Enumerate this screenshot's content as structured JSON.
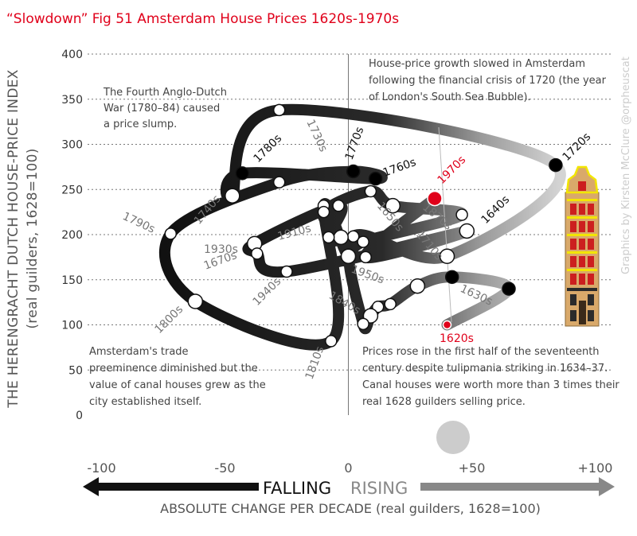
{
  "title": "“Slowdown” Fig 51 Amsterdam House Prices 1620s-1970s",
  "credit": "Graphics by Kirsten McClure @orpheuscat",
  "chart_data": {
    "type": "scatter",
    "subtype": "connected-scatter",
    "xlabel": "ABSOLUTE CHANGE PER DECADE (real guilders, 1628=100)",
    "x_falling_label": "FALLING",
    "x_rising_label": "RISING",
    "ylabel_line1": "THE HERENGRACHT DUTCH HOUSE-PRICE INDEX",
    "ylabel_line2": "(real guilders, 1628=100)",
    "xlim": [
      -100,
      100
    ],
    "ylim": [
      0,
      400
    ],
    "x_ticks": [
      "-100",
      "-50",
      "0",
      "+50",
      "+100"
    ],
    "y_ticks": [
      "0",
      "50",
      "100",
      "150",
      "200",
      "250",
      "300",
      "350",
      "400"
    ],
    "grid": true,
    "points": [
      {
        "x": 40,
        "y": 100,
        "decade": "1620s",
        "label": "1620s",
        "color": "#e0001a"
      },
      {
        "x": 65,
        "y": 140,
        "decade": "1630s",
        "label": "1630s"
      },
      {
        "x": 42,
        "y": 153,
        "decade": "1640s",
        "label": ""
      },
      {
        "x": 28,
        "y": 143,
        "decade": "1650s",
        "label": ""
      },
      {
        "x": 17,
        "y": 123,
        "decade": "1660s",
        "label": ""
      },
      {
        "x": 12,
        "y": 120,
        "decade": "1670s",
        "label": ""
      },
      {
        "x": 9,
        "y": 110,
        "decade": "1680s",
        "label": ""
      },
      {
        "x": 6,
        "y": 101,
        "decade": "1690s",
        "label": ""
      },
      {
        "x": 2,
        "y": 198,
        "decade": "1700s",
        "label": ""
      },
      {
        "x": 40,
        "y": 176,
        "decade": "1710s",
        "label": ""
      },
      {
        "x": 84,
        "y": 277,
        "decade": "1720s",
        "label": "1720s"
      },
      {
        "x": -28,
        "y": 338,
        "decade": "1730s",
        "label": ""
      },
      {
        "x": -47,
        "y": 243,
        "decade": "1740s",
        "label": ""
      },
      {
        "x": -43,
        "y": 268,
        "decade": "1750s",
        "label": ""
      },
      {
        "x": 11,
        "y": 262,
        "decade": "1760s",
        "label": "1760s"
      },
      {
        "x": 2,
        "y": 270,
        "decade": "1770s",
        "label": ""
      },
      {
        "x": -28,
        "y": 258,
        "decade": "1780s",
        "label": ""
      },
      {
        "x": -72,
        "y": 201,
        "decade": "1790s",
        "label": ""
      },
      {
        "x": -62,
        "y": 126,
        "decade": "1800s",
        "label": ""
      },
      {
        "x": -7,
        "y": 82,
        "decade": "1810s",
        "label": ""
      },
      {
        "x": -10,
        "y": 232,
        "decade": "1820s",
        "label": ""
      },
      {
        "x": 0,
        "y": 176,
        "decade": "1830s",
        "label": ""
      },
      {
        "x": 6,
        "y": 192,
        "decade": "1840s",
        "label": ""
      },
      {
        "x": 46,
        "y": 222,
        "decade": "1850s",
        "label": ""
      },
      {
        "x": 18,
        "y": 232,
        "decade": "1860s",
        "label": ""
      },
      {
        "x": 9,
        "y": 248,
        "decade": "1870s",
        "label": ""
      },
      {
        "x": -10,
        "y": 225,
        "decade": "1880s",
        "label": ""
      },
      {
        "x": -3,
        "y": 197,
        "decade": "1890s",
        "label": ""
      },
      {
        "x": -8,
        "y": 197,
        "decade": "1900s",
        "label": ""
      },
      {
        "x": -4,
        "y": 232,
        "decade": "1910s",
        "label": ""
      },
      {
        "x": -38,
        "y": 190,
        "decade": "1920s",
        "label": ""
      },
      {
        "x": -37,
        "y": 179,
        "decade": "1930s",
        "label": ""
      },
      {
        "x": -25,
        "y": 159,
        "decade": "1940s",
        "label": ""
      },
      {
        "x": 48,
        "y": 204,
        "decade": "1950s",
        "label": ""
      },
      {
        "x": 7,
        "y": 175,
        "decade": "1960s",
        "label": ""
      },
      {
        "x": 35,
        "y": 240,
        "decade": "1970s",
        "label": "1970s",
        "color": "#e0001a"
      }
    ],
    "labels": [
      "1620s",
      "1630s",
      "1640s",
      "1650s",
      "1670s",
      "1710s",
      "1720s",
      "1730s",
      "1740s",
      "1760s",
      "1770s",
      "1780s",
      "1790s",
      "1800s",
      "1810s",
      "1840s",
      "1870s",
      "1910s",
      "1930s",
      "1940s",
      "1950s",
      "1970s"
    ],
    "annotations": [
      {
        "lines": [
          "The Fourth Anglo-Dutch",
          "War (1780–84) caused",
          "a price slump."
        ]
      },
      {
        "lines": [
          "House-price growth slowed in Amsterdam",
          "following the financial crisis of 1720 (the year",
          "of London's South Sea Bubble)."
        ]
      },
      {
        "lines": [
          "Amsterdam's trade",
          "preeminence diminished but the",
          "value of canal houses grew as the",
          "city established itself."
        ]
      },
      {
        "lines": [
          "Prices rose in the first half of the seventeenth",
          "century despite tulipmania striking in 1634–37.",
          "Canal houses were worth more than 3 times their",
          "real 1628 guilders selling price."
        ]
      }
    ]
  }
}
